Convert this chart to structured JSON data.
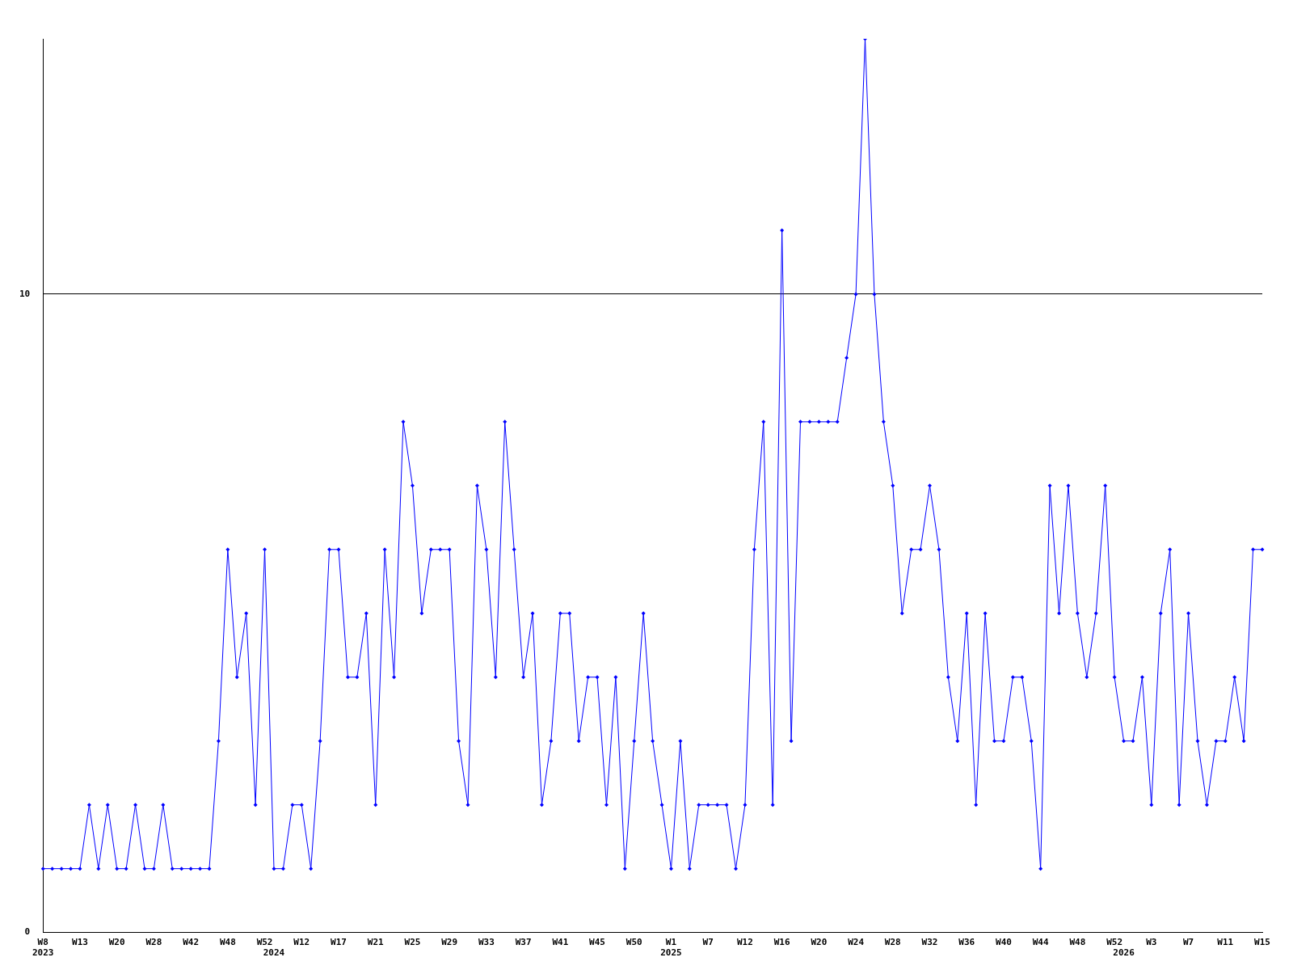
{
  "chart_data": {
    "type": "line",
    "categories": [
      "W8\n2023",
      null,
      null,
      null,
      "W13",
      null,
      null,
      null,
      "W20",
      null,
      null,
      null,
      "W28",
      null,
      null,
      null,
      "W42",
      null,
      null,
      null,
      "W48",
      null,
      null,
      null,
      "W52",
      "\n2024",
      null,
      null,
      "W12",
      null,
      null,
      null,
      "W17",
      null,
      null,
      null,
      "W21",
      null,
      null,
      null,
      "W25",
      null,
      null,
      null,
      "W29",
      null,
      null,
      null,
      "W33",
      null,
      null,
      null,
      "W37",
      null,
      null,
      null,
      "W41",
      null,
      null,
      null,
      "W45",
      null,
      null,
      null,
      "W50",
      null,
      null,
      null,
      "W1\n2025",
      null,
      null,
      null,
      "W7",
      null,
      null,
      null,
      "W12",
      null,
      null,
      null,
      "W16",
      null,
      null,
      null,
      "W20",
      null,
      null,
      null,
      "W24",
      null,
      null,
      null,
      "W28",
      null,
      null,
      null,
      "W32",
      null,
      null,
      null,
      "W36",
      null,
      null,
      null,
      "W40",
      null,
      null,
      null,
      "W44",
      null,
      null,
      null,
      "W48",
      null,
      null,
      null,
      "W52",
      "\n2026",
      null,
      null,
      "W3",
      null,
      null,
      null,
      "W7",
      null,
      null,
      null,
      "W11",
      null,
      null,
      null,
      "W15"
    ],
    "series": [
      {
        "color": "#0000ff",
        "values": [
          1,
          1,
          1,
          1,
          1,
          2,
          1,
          2,
          1,
          1,
          2,
          1,
          1,
          2,
          1,
          1,
          1,
          1,
          1,
          3,
          6,
          4,
          5,
          2,
          6,
          1,
          1,
          2,
          2,
          1,
          3,
          6,
          6,
          4,
          4,
          5,
          2,
          6,
          4,
          8,
          7,
          5,
          6,
          6,
          6,
          3,
          2,
          7,
          6,
          4,
          8,
          6,
          4,
          5,
          2,
          3,
          5,
          5,
          3,
          4,
          4,
          2,
          4,
          1,
          3,
          5,
          3,
          2,
          1,
          3,
          1,
          2,
          2,
          2,
          2,
          1,
          2,
          6,
          8,
          2,
          11,
          3,
          8,
          8,
          8,
          8,
          8,
          9,
          10,
          14,
          10,
          8,
          7,
          5,
          6,
          6,
          7,
          6,
          4,
          3,
          5,
          2,
          5,
          3,
          3,
          4,
          4,
          3,
          1,
          7,
          5,
          7,
          5,
          4,
          5,
          7,
          4,
          3,
          3,
          4,
          2,
          5,
          6,
          2,
          5,
          3,
          2,
          3,
          3,
          4,
          3,
          6,
          6
        ]
      }
    ],
    "ylim": [
      0,
      14
    ],
    "yticks": [
      0,
      10
    ],
    "grid": "y",
    "legend": false,
    "marker": "diamond",
    "line_style": "solid"
  }
}
